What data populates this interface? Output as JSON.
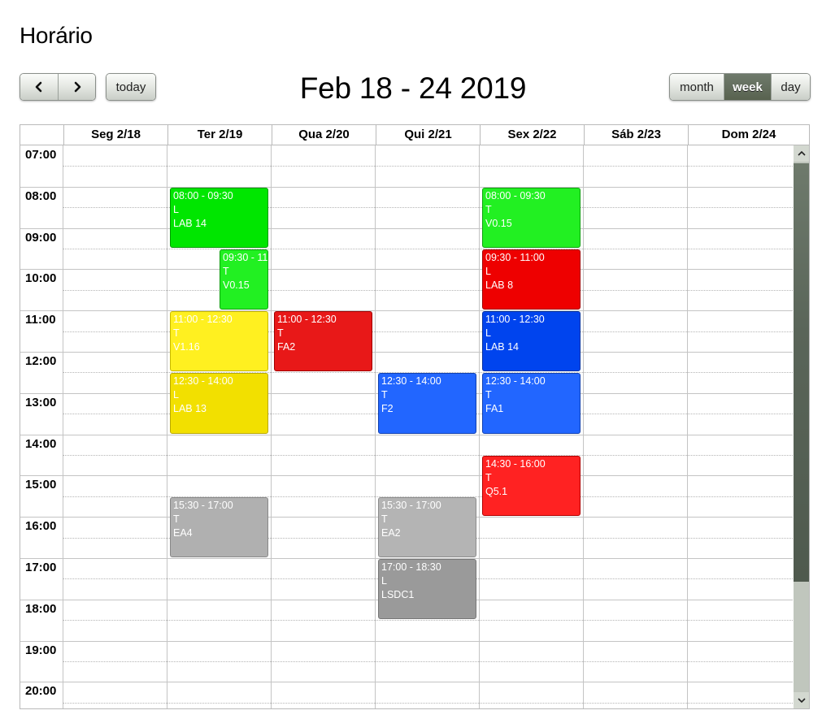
{
  "page": {
    "title": "Horário"
  },
  "toolbar": {
    "prev_icon": "chevron-left-icon",
    "next_icon": "chevron-right-icon",
    "today_label": "today",
    "range_title": "Feb 18 - 24 2019",
    "views": [
      "month",
      "week",
      "day"
    ],
    "active_view": "week"
  },
  "calendar": {
    "days": [
      "Seg 2/18",
      "Ter 2/19",
      "Qua 2/20",
      "Qui 2/21",
      "Sex 2/22",
      "Sáb 2/23",
      "Dom 2/24"
    ],
    "hours": [
      "07:00",
      "08:00",
      "09:00",
      "10:00",
      "11:00",
      "12:00",
      "13:00",
      "14:00",
      "15:00",
      "16:00",
      "17:00",
      "18:00",
      "19:00",
      "20:00"
    ],
    "events": [
      {
        "day": 1,
        "start": "08:00",
        "end": "09:30",
        "time": "08:00 - 09:30",
        "type": "L",
        "room": "LAB 14",
        "color": "#00e600",
        "border": "#009a00"
      },
      {
        "day": 1,
        "start": "09:30",
        "end": "11:00",
        "time": "09:30 - 11:",
        "type": "T",
        "room": "V0.15",
        "color": "#22f022",
        "border": "#10a010",
        "offset": 0.5
      },
      {
        "day": 1,
        "start": "11:00",
        "end": "12:30",
        "time": "11:00 - 12:30",
        "type": "T",
        "room": "V1.16",
        "color": "#fff020",
        "border": "#c8b800"
      },
      {
        "day": 1,
        "start": "12:30",
        "end": "14:00",
        "time": "12:30 - 14:00",
        "type": "L",
        "room": "LAB 13",
        "color": "#f2e000",
        "border": "#b8a800"
      },
      {
        "day": 1,
        "start": "15:30",
        "end": "17:00",
        "time": "15:30 - 17:00",
        "type": "T",
        "room": "EA4",
        "color": "#b0b0b0",
        "border": "#888888"
      },
      {
        "day": 2,
        "start": "11:00",
        "end": "12:30",
        "time": "11:00 - 12:30",
        "type": "T",
        "room": "FA2",
        "color": "#e81818",
        "border": "#a00000"
      },
      {
        "day": 3,
        "start": "12:30",
        "end": "14:00",
        "time": "12:30 - 14:00",
        "type": "T",
        "room": "F2",
        "color": "#2266ff",
        "border": "#1040b0"
      },
      {
        "day": 3,
        "start": "15:30",
        "end": "17:00",
        "time": "15:30 - 17:00",
        "type": "T",
        "room": "EA2",
        "color": "#b4b4b4",
        "border": "#8c8c8c"
      },
      {
        "day": 3,
        "start": "17:00",
        "end": "18:30",
        "time": "17:00 - 18:30",
        "type": "L",
        "room": "LSDC1",
        "color": "#9a9a9a",
        "border": "#777777"
      },
      {
        "day": 4,
        "start": "08:00",
        "end": "09:30",
        "time": "08:00 - 09:30",
        "type": "T",
        "room": "V0.15",
        "color": "#22f022",
        "border": "#10a010"
      },
      {
        "day": 4,
        "start": "09:30",
        "end": "11:00",
        "time": "09:30 - 11:00",
        "type": "L",
        "room": "LAB 8",
        "color": "#ee0000",
        "border": "#a00000"
      },
      {
        "day": 4,
        "start": "11:00",
        "end": "12:30",
        "time": "11:00 - 12:30",
        "type": "L",
        "room": "LAB 14",
        "color": "#0044ee",
        "border": "#0030a0"
      },
      {
        "day": 4,
        "start": "12:30",
        "end": "14:00",
        "time": "12:30 - 14:00",
        "type": "T",
        "room": "FA1",
        "color": "#2266ff",
        "border": "#1040b0"
      },
      {
        "day": 4,
        "start": "14:30",
        "end": "16:00",
        "time": "14:30 - 16:00",
        "type": "T",
        "room": "Q5.1",
        "color": "#ff2222",
        "border": "#b00000"
      }
    ]
  },
  "scrollbar": {
    "up_icon": "chevron-up-icon",
    "down_icon": "chevron-down-icon"
  }
}
